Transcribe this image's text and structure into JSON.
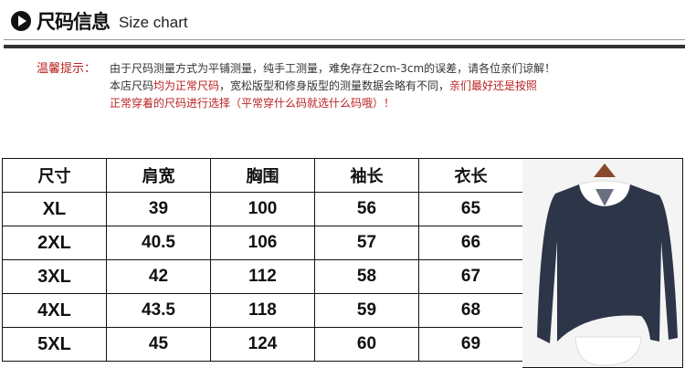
{
  "header": {
    "title_cn": "尺码信息",
    "title_en": "Size chart",
    "icon": "play-circle-icon"
  },
  "notice": {
    "label": "温馨提示：",
    "line1": "由于尺码测量方式为平铺测量，纯手工测量，难免存在2cm-3cm的误差，请各位亲们谅解！",
    "line2_a": "本店尺码",
    "line2_b": "均为正常尺码",
    "line2_c": "，宽松版型和修身版型的测量数据会略有不同，",
    "line2_d": "亲们最好还是按照",
    "line3": "正常穿着的尺码进行选择（平常穿什么码就选什么码哦）！",
    "highlight_color": "#b22222"
  },
  "table": {
    "headers": [
      "尺寸",
      "肩宽",
      "胸围",
      "袖长",
      "衣长"
    ],
    "rows": [
      [
        "XL",
        "39",
        "100",
        "56",
        "65"
      ],
      [
        "2XL",
        "40.5",
        "106",
        "57",
        "66"
      ],
      [
        "3XL",
        "42",
        "112",
        "58",
        "67"
      ],
      [
        "4XL",
        "43.5",
        "118",
        "59",
        "68"
      ],
      [
        "5XL",
        "45",
        "124",
        "60",
        "69"
      ]
    ]
  },
  "product_image": {
    "description_icon": "navy-sweater-with-white-shirt-photo",
    "colors": {
      "sweater": "#2d3548",
      "shirt": "#ffffff",
      "hanger": "#8a4a2c"
    }
  }
}
